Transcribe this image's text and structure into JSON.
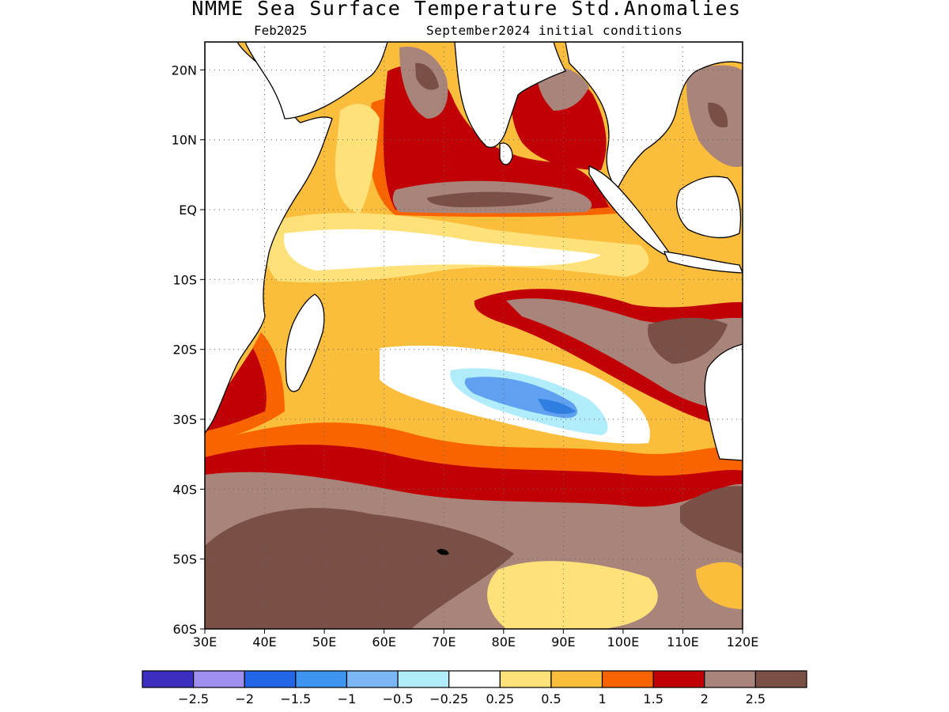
{
  "title": "NMME Sea Surface Temperature Std.Anomalies",
  "subtitle_left": "Feb2025",
  "subtitle_right": "September2024 initial conditions",
  "map": {
    "lon_range": [
      30,
      120
    ],
    "lat_range": [
      -60,
      24
    ],
    "lon_ticks": [
      {
        "value": 30,
        "label": "30E"
      },
      {
        "value": 40,
        "label": "40E"
      },
      {
        "value": 50,
        "label": "50E"
      },
      {
        "value": 60,
        "label": "60E"
      },
      {
        "value": 70,
        "label": "70E"
      },
      {
        "value": 80,
        "label": "80E"
      },
      {
        "value": 90,
        "label": "90E"
      },
      {
        "value": 100,
        "label": "100E"
      },
      {
        "value": 110,
        "label": "110E"
      },
      {
        "value": 120,
        "label": "120E"
      }
    ],
    "lat_ticks": [
      {
        "value": 20,
        "label": "20N"
      },
      {
        "value": 10,
        "label": "10N"
      },
      {
        "value": 0,
        "label": "EQ"
      },
      {
        "value": -10,
        "label": "10S"
      },
      {
        "value": -20,
        "label": "20S"
      },
      {
        "value": -30,
        "label": "30S"
      },
      {
        "value": -40,
        "label": "40S"
      },
      {
        "value": -50,
        "label": "50S"
      },
      {
        "value": -60,
        "label": "60S"
      }
    ],
    "grid": "dotted",
    "anomaly_regions": [
      {
        "name": "southern-ocean-strong-warm",
        "level": 2.5,
        "color": "#7a4f45"
      },
      {
        "name": "bay-of-bengal-warm",
        "level": 2,
        "color": "#a9847a"
      },
      {
        "name": "arabian-sea-warm",
        "level": 2,
        "color": "#a9847a"
      },
      {
        "name": "southeast-indian-warm",
        "level": 2.5,
        "color": "#7a4f45"
      },
      {
        "name": "subtropical-cool-patch",
        "level": -1,
        "color": "#5fa0f0"
      },
      {
        "name": "equatorial-neutral-band",
        "level": 0,
        "color": "#ffffff"
      }
    ]
  },
  "colorbar": {
    "colors": [
      "#3c2fbf",
      "#9e8ff0",
      "#2166e6",
      "#3d95f0",
      "#7bb7f5",
      "#b0ecfa",
      "#ffffff",
      "#ffe17a",
      "#fbbd3c",
      "#fa6400",
      "#c10006",
      "#a9847a",
      "#7a4f45"
    ],
    "labels": [
      "−2.5",
      "−2",
      "−1.5",
      "−1",
      "−0.5",
      "−0.25",
      "0.25",
      "0.5",
      "1",
      "1.5",
      "2",
      "2.5"
    ]
  }
}
